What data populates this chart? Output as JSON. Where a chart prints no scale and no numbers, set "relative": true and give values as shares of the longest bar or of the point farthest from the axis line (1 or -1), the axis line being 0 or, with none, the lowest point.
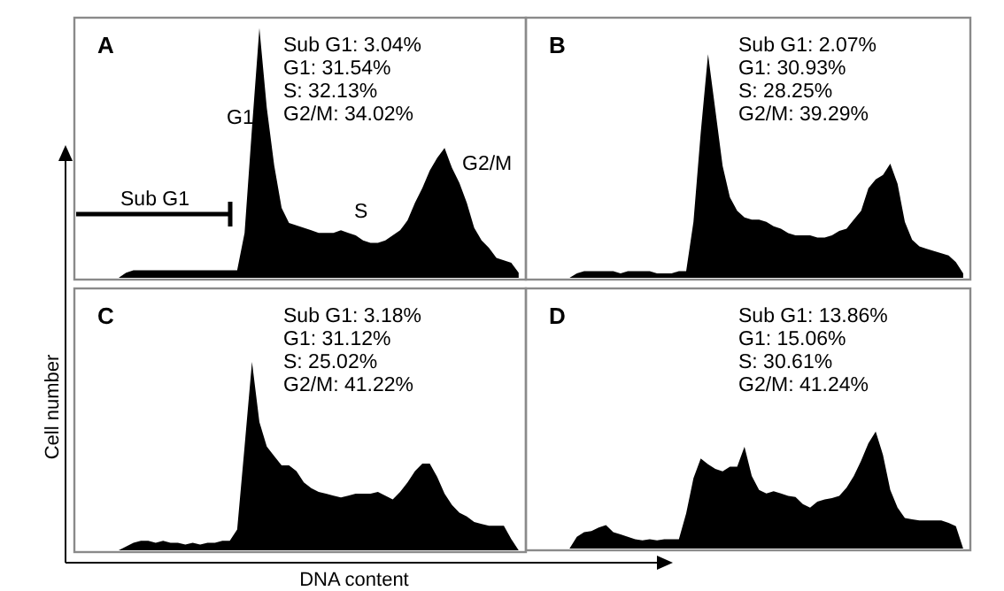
{
  "chart_data": [
    {
      "type": "area",
      "relative": true,
      "title": "A",
      "color": "#000000",
      "categories": [
        null,
        null,
        null,
        null,
        null,
        null,
        null,
        null,
        null,
        null,
        null,
        null,
        null,
        null,
        null,
        null,
        null,
        null,
        null,
        null,
        null,
        null,
        null,
        null,
        null,
        null,
        null,
        null,
        null,
        null,
        null,
        null,
        null,
        null,
        null,
        null,
        null,
        null,
        null,
        null,
        null,
        null,
        null,
        null,
        null,
        null,
        null,
        null,
        null,
        null,
        null,
        null,
        null,
        null,
        null,
        null,
        null,
        null,
        null,
        null
      ],
      "values": [
        0,
        0,
        0,
        0,
        0,
        0,
        0.02,
        0.03,
        0.03,
        0.03,
        0.03,
        0.03,
        0.03,
        0.03,
        0.03,
        0.03,
        0.03,
        0.03,
        0.03,
        0.03,
        0.03,
        0.03,
        0.18,
        0.6,
        1.0,
        0.68,
        0.45,
        0.28,
        0.22,
        0.21,
        0.2,
        0.19,
        0.18,
        0.18,
        0.18,
        0.19,
        0.18,
        0.17,
        0.15,
        0.14,
        0.14,
        0.15,
        0.17,
        0.19,
        0.23,
        0.3,
        0.36,
        0.43,
        0.48,
        0.52,
        0.44,
        0.38,
        0.3,
        0.2,
        0.15,
        0.12,
        0.08,
        0.07,
        0.06,
        0.02
      ],
      "annotations": [
        "Sub G1: 3.04%",
        "G1: 31.54%",
        "S: 32.13%",
        "G2/M: 34.02%",
        "G1",
        "S",
        "G2/M",
        "Sub G1"
      ]
    },
    {
      "type": "area",
      "relative": true,
      "title": "B",
      "color": "#000000",
      "categories": [
        null,
        null,
        null,
        null,
        null,
        null,
        null,
        null,
        null,
        null,
        null,
        null,
        null,
        null,
        null,
        null,
        null,
        null,
        null,
        null,
        null,
        null,
        null,
        null,
        null,
        null,
        null,
        null,
        null,
        null,
        null,
        null,
        null,
        null,
        null,
        null,
        null,
        null,
        null,
        null,
        null,
        null,
        null,
        null,
        null,
        null,
        null,
        null,
        null,
        null,
        null,
        null,
        null,
        null,
        null,
        null,
        null,
        null,
        null,
        null
      ],
      "values": [
        0,
        0,
        0,
        0,
        0,
        0,
        0.02,
        0.03,
        0.03,
        0.03,
        0.03,
        0.03,
        0.02,
        0.03,
        0.03,
        0.03,
        0.03,
        0.02,
        0.02,
        0.02,
        0.03,
        0.03,
        0.25,
        0.65,
        1.0,
        0.75,
        0.5,
        0.36,
        0.3,
        0.27,
        0.26,
        0.26,
        0.25,
        0.23,
        0.22,
        0.2,
        0.19,
        0.19,
        0.19,
        0.18,
        0.18,
        0.19,
        0.21,
        0.22,
        0.26,
        0.3,
        0.4,
        0.44,
        0.46,
        0.51,
        0.42,
        0.25,
        0.17,
        0.14,
        0.13,
        0.12,
        0.11,
        0.1,
        0.07,
        0.02
      ],
      "annotations": [
        "Sub G1: 2.07%",
        "G1: 30.93%",
        "S: 28.25%",
        "G2/M: 39.29%"
      ]
    },
    {
      "type": "area",
      "relative": true,
      "title": "C",
      "color": "#000000",
      "xlabel": "DNA content",
      "ylabel": "Cell number",
      "categories": [
        null,
        null,
        null,
        null,
        null,
        null,
        null,
        null,
        null,
        null,
        null,
        null,
        null,
        null,
        null,
        null,
        null,
        null,
        null,
        null,
        null,
        null,
        null,
        null,
        null,
        null,
        null,
        null,
        null,
        null,
        null,
        null,
        null,
        null,
        null,
        null,
        null,
        null,
        null,
        null,
        null,
        null,
        null,
        null,
        null,
        null,
        null,
        null,
        null,
        null,
        null,
        null,
        null,
        null,
        null,
        null,
        null,
        null,
        null,
        null
      ],
      "values": [
        0,
        0,
        0,
        0,
        0,
        0,
        0.02,
        0.04,
        0.05,
        0.05,
        0.04,
        0.05,
        0.04,
        0.04,
        0.03,
        0.04,
        0.03,
        0.04,
        0.04,
        0.05,
        0.05,
        0.11,
        0.55,
        1.0,
        0.68,
        0.55,
        0.5,
        0.45,
        0.45,
        0.42,
        0.36,
        0.33,
        0.31,
        0.3,
        0.29,
        0.28,
        0.29,
        0.3,
        0.3,
        0.3,
        0.31,
        0.29,
        0.27,
        0.31,
        0.36,
        0.42,
        0.46,
        0.46,
        0.39,
        0.3,
        0.24,
        0.2,
        0.18,
        0.15,
        0.14,
        0.13,
        0.13,
        0.13,
        0.06,
        0
      ],
      "annotations": [
        "Sub G1: 3.18%",
        "G1: 31.12%",
        "S: 25.02%",
        "G2/M: 41.22%"
      ]
    },
    {
      "type": "area",
      "relative": true,
      "title": "D",
      "color": "#000000",
      "categories": [
        null,
        null,
        null,
        null,
        null,
        null,
        null,
        null,
        null,
        null,
        null,
        null,
        null,
        null,
        null,
        null,
        null,
        null,
        null,
        null,
        null,
        null,
        null,
        null,
        null,
        null,
        null,
        null,
        null,
        null,
        null,
        null,
        null,
        null,
        null,
        null,
        null,
        null,
        null,
        null,
        null,
        null,
        null,
        null,
        null,
        null,
        null,
        null,
        null,
        null,
        null,
        null,
        null,
        null,
        null,
        null,
        null,
        null,
        null,
        null
      ],
      "values": [
        0,
        0,
        0,
        0,
        0,
        0,
        0.1,
        0.14,
        0.15,
        0.18,
        0.2,
        0.14,
        0.12,
        0.1,
        0.08,
        0.07,
        0.08,
        0.07,
        0.08,
        0.08,
        0.08,
        0.3,
        0.6,
        0.77,
        0.72,
        0.68,
        0.66,
        0.7,
        0.7,
        0.87,
        0.62,
        0.5,
        0.47,
        0.49,
        0.47,
        0.45,
        0.44,
        0.38,
        0.35,
        0.4,
        0.42,
        0.43,
        0.45,
        0.52,
        0.62,
        0.75,
        0.9,
        1.0,
        0.8,
        0.5,
        0.35,
        0.26,
        0.25,
        0.24,
        0.24,
        0.24,
        0.24,
        0.22,
        0.19,
        0
      ],
      "annotations": [
        "Sub G1: 13.86%",
        "G1: 15.06%",
        "S: 30.61%",
        "G2/M: 41.24%"
      ]
    }
  ]
}
